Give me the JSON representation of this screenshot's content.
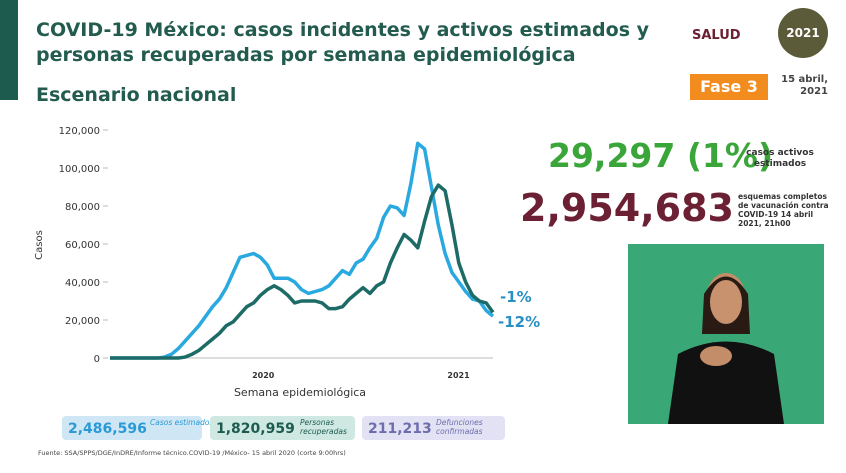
{
  "header": {
    "title": [
      "COVID-19 México: casos incidentes y activos estimados y",
      "personas recuperadas por semana epidemiológica"
    ],
    "subtitle": "Escenario nacional",
    "logo": "SALUD",
    "badge": "2021",
    "phase": "Fase 3",
    "date": "15 abril, 2021"
  },
  "stats": {
    "active": "29,297 (1%)",
    "active_label": "casos activos estimados",
    "vaccination": "2,954,683",
    "vaccination_label": "esquemas completos de vacunación contra COVID-19 14 abril 2021, 21h00"
  },
  "chart_data": {
    "type": "line",
    "categories": [
      null,
      null,
      null,
      null,
      null,
      null,
      null,
      null,
      null,
      null,
      null,
      null,
      null,
      null,
      null,
      null,
      null,
      null,
      null,
      null,
      null,
      null,
      null,
      null,
      null,
      null,
      null,
      null,
      null,
      null,
      null,
      null,
      null,
      null,
      null,
      null,
      null,
      null,
      null,
      null,
      null,
      null,
      null,
      null,
      null,
      null,
      null,
      null,
      null,
      null,
      null,
      null,
      null,
      null,
      null,
      null,
      null
    ],
    "year_labels": [
      "2020",
      "2021"
    ],
    "y_label": "Casos",
    "x_label": "Semana epidemiológica",
    "ylim": [
      0,
      120000
    ],
    "yticks": [
      0,
      {
        "value": 20000,
        "label": "20,000"
      },
      {
        "value": 40000,
        "label": "40,000"
      },
      {
        "value": 60000,
        "label": "60,000"
      },
      {
        "value": 80000,
        "label": "80,000"
      },
      {
        "value": 100000,
        "label": "100,000"
      },
      {
        "value": 120000,
        "label": "120,000"
      }
    ],
    "grid": false,
    "series": [
      {
        "color": "#29a9df",
        "values": [
          0,
          0,
          0,
          0,
          0,
          0,
          0,
          0,
          500,
          2000,
          5000,
          9000,
          13000,
          17000,
          22000,
          27000,
          31000,
          37000,
          45000,
          53000,
          54000,
          55000,
          53000,
          49000,
          42000,
          42000,
          42000,
          40000,
          36000,
          34000,
          35000,
          36000,
          38000,
          42000,
          46000,
          44000,
          50000,
          52000,
          58000,
          63000,
          74000,
          80000,
          79000,
          75000,
          92000,
          113000,
          110000,
          90000,
          70000,
          55000,
          45000,
          40000,
          35000,
          31000,
          30000,
          25000,
          22000
        ]
      },
      {
        "color": "#1d6b66",
        "values": [
          0,
          0,
          0,
          0,
          0,
          0,
          0,
          0,
          0,
          0,
          0,
          500,
          2000,
          4000,
          7000,
          10000,
          13000,
          17000,
          19000,
          23000,
          27000,
          29000,
          33000,
          36000,
          38000,
          36000,
          33000,
          29000,
          30000,
          30000,
          30000,
          29000,
          26000,
          26000,
          27000,
          31000,
          34000,
          37000,
          34000,
          38000,
          40000,
          50000,
          58000,
          65000,
          62000,
          58000,
          72000,
          85000,
          91000,
          88000,
          70000,
          50000,
          40000,
          33000,
          30000,
          29000,
          24000
        ]
      }
    ],
    "annotations": [
      "-1%",
      "-12%"
    ]
  },
  "summary": [
    {
      "value": "2,486,596",
      "label": "Casos estimados"
    },
    {
      "value": "1,820,959",
      "label": "Personas recuperadas"
    },
    {
      "value": "211,213",
      "label": "Defunciones confirmadas"
    }
  ],
  "footnote": "Fuente: SSA/SPPS/DGE/InDRE/Informe técnico.COVID-19 /México- 15 abril 2020 (corte 9:00hrs)"
}
